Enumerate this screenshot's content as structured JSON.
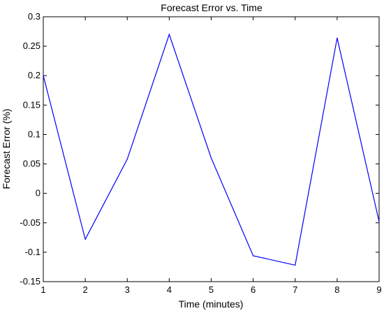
{
  "chart_data": {
    "type": "line",
    "title": "Forecast Error vs. Time",
    "xlabel": "Time (minutes)",
    "ylabel": "Forecast Error (%)",
    "xlim": [
      1,
      9
    ],
    "ylim": [
      -0.15,
      0.3
    ],
    "xticks": [
      1,
      2,
      3,
      4,
      5,
      6,
      7,
      8,
      9
    ],
    "xtick_labels": [
      "1",
      "2",
      "3",
      "4",
      "5",
      "6",
      "7",
      "8",
      "9"
    ],
    "yticks": [
      -0.15,
      -0.1,
      -0.05,
      0,
      0.05,
      0.1,
      0.15,
      0.2,
      0.25,
      0.3
    ],
    "ytick_labels": [
      "-0.15",
      "-0.1",
      "-0.05",
      "0",
      "0.05",
      "0.1",
      "0.15",
      "0.2",
      "0.25",
      "0.3"
    ],
    "grid": false,
    "series": [
      {
        "color": "#0000ff",
        "x": [
          1,
          2,
          3,
          4,
          5,
          6,
          7,
          8,
          9
        ],
        "y": [
          0.2,
          -0.078,
          0.058,
          0.27,
          0.06,
          -0.106,
          -0.122,
          0.264,
          -0.048
        ]
      }
    ]
  }
}
